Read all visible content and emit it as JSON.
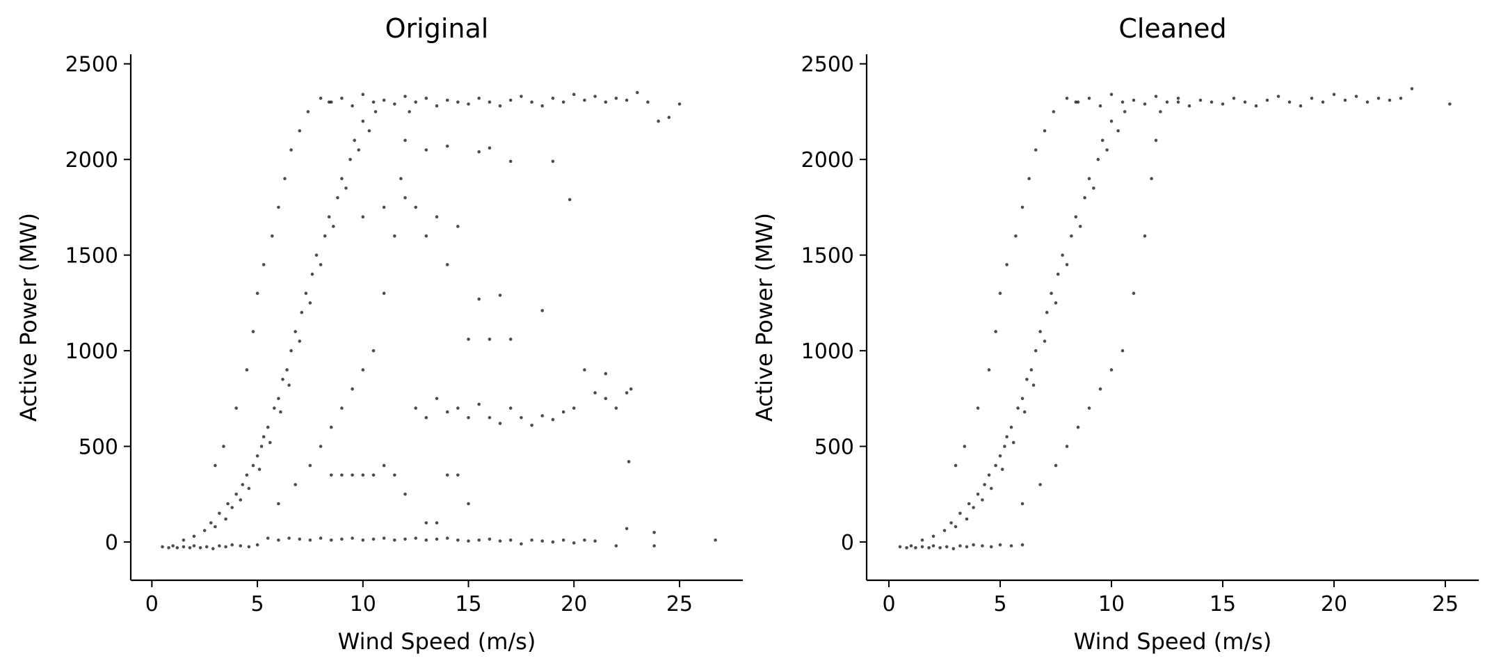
{
  "chart_data": [
    {
      "type": "scatter",
      "title": "Original",
      "xlabel": "Wind Speed (m/s)",
      "ylabel": "Active Power (MW)",
      "xlim": [
        -1,
        28
      ],
      "ylim": [
        -200,
        2550
      ],
      "xticks": [
        0,
        5,
        10,
        15,
        20,
        25
      ],
      "yticks": [
        0,
        500,
        1000,
        1500,
        2000,
        2500
      ],
      "grid": false,
      "marker_color": "#000000",
      "points": [
        [
          0.5,
          -25
        ],
        [
          0.8,
          -30
        ],
        [
          1.0,
          -20
        ],
        [
          1.2,
          -30
        ],
        [
          1.5,
          -25
        ],
        [
          1.8,
          -30
        ],
        [
          2.0,
          -20
        ],
        [
          2.3,
          -30
        ],
        [
          2.6,
          -25
        ],
        [
          2.9,
          -35
        ],
        [
          3.2,
          -20
        ],
        [
          3.5,
          -25
        ],
        [
          3.8,
          -15
        ],
        [
          4.2,
          -20
        ],
        [
          4.6,
          -25
        ],
        [
          5.0,
          -15
        ],
        [
          1.5,
          10
        ],
        [
          2.0,
          30
        ],
        [
          2.5,
          60
        ],
        [
          2.8,
          100
        ],
        [
          3.0,
          80
        ],
        [
          3.2,
          150
        ],
        [
          3.5,
          120
        ],
        [
          3.6,
          200
        ],
        [
          3.8,
          180
        ],
        [
          4.0,
          250
        ],
        [
          4.2,
          220
        ],
        [
          4.3,
          300
        ],
        [
          4.5,
          350
        ],
        [
          4.6,
          280
        ],
        [
          4.8,
          400
        ],
        [
          5.0,
          450
        ],
        [
          5.1,
          380
        ],
        [
          5.2,
          500
        ],
        [
          5.3,
          550
        ],
        [
          5.5,
          600
        ],
        [
          5.6,
          520
        ],
        [
          5.8,
          700
        ],
        [
          6.0,
          750
        ],
        [
          6.1,
          680
        ],
        [
          6.2,
          850
        ],
        [
          6.4,
          900
        ],
        [
          6.5,
          820
        ],
        [
          6.6,
          1000
        ],
        [
          6.8,
          1100
        ],
        [
          7.0,
          1050
        ],
        [
          7.1,
          1200
        ],
        [
          7.3,
          1300
        ],
        [
          7.5,
          1250
        ],
        [
          7.6,
          1400
        ],
        [
          7.8,
          1500
        ],
        [
          8.0,
          1450
        ],
        [
          8.2,
          1600
        ],
        [
          8.4,
          1700
        ],
        [
          8.6,
          1650
        ],
        [
          8.8,
          1800
        ],
        [
          9.0,
          1900
        ],
        [
          9.2,
          1850
        ],
        [
          9.4,
          2000
        ],
        [
          9.6,
          2100
        ],
        [
          9.8,
          2050
        ],
        [
          10.0,
          2200
        ],
        [
          10.3,
          2150
        ],
        [
          10.6,
          2250
        ],
        [
          3.0,
          400
        ],
        [
          3.4,
          500
        ],
        [
          4.0,
          700
        ],
        [
          4.5,
          900
        ],
        [
          4.8,
          1100
        ],
        [
          5.0,
          1300
        ],
        [
          5.3,
          1450
        ],
        [
          5.7,
          1600
        ],
        [
          6.0,
          1750
        ],
        [
          6.3,
          1900
        ],
        [
          6.6,
          2050
        ],
        [
          7.0,
          2150
        ],
        [
          7.4,
          2250
        ],
        [
          8.0,
          2320
        ],
        [
          8.4,
          2300
        ],
        [
          6.0,
          200
        ],
        [
          6.8,
          300
        ],
        [
          7.5,
          400
        ],
        [
          8.0,
          500
        ],
        [
          8.5,
          600
        ],
        [
          9.0,
          700
        ],
        [
          9.5,
          800
        ],
        [
          10.0,
          900
        ],
        [
          10.5,
          1000
        ],
        [
          11.0,
          1300
        ],
        [
          11.5,
          1600
        ],
        [
          11.8,
          1900
        ],
        [
          12.0,
          2100
        ],
        [
          12.2,
          2250
        ],
        [
          8.5,
          2300
        ],
        [
          9.0,
          2320
        ],
        [
          9.5,
          2280
        ],
        [
          10.0,
          2340
        ],
        [
          10.5,
          2300
        ],
        [
          11.0,
          2310
        ],
        [
          11.5,
          2290
        ],
        [
          12.0,
          2330
        ],
        [
          12.5,
          2300
        ],
        [
          13.0,
          2320
        ],
        [
          13.5,
          2280
        ],
        [
          14.0,
          2310
        ],
        [
          14.5,
          2300
        ],
        [
          15.0,
          2290
        ],
        [
          15.5,
          2320
        ],
        [
          16.0,
          2300
        ],
        [
          16.5,
          2280
        ],
        [
          17.0,
          2310
        ],
        [
          17.5,
          2330
        ],
        [
          18.0,
          2300
        ],
        [
          18.5,
          2280
        ],
        [
          19.0,
          2320
        ],
        [
          19.5,
          2300
        ],
        [
          20.0,
          2340
        ],
        [
          20.5,
          2310
        ],
        [
          21.0,
          2330
        ],
        [
          21.5,
          2300
        ],
        [
          22.0,
          2320
        ],
        [
          22.5,
          2310
        ],
        [
          23.0,
          2350
        ],
        [
          23.5,
          2300
        ],
        [
          24.0,
          2200
        ],
        [
          24.5,
          2220
        ],
        [
          25.0,
          2290
        ],
        [
          13.0,
          2050
        ],
        [
          14.0,
          2070
        ],
        [
          15.5,
          2040
        ],
        [
          16.0,
          2060
        ],
        [
          17.0,
          1990
        ],
        [
          19.0,
          1990
        ],
        [
          19.8,
          1790
        ],
        [
          10.0,
          1700
        ],
        [
          11.0,
          1750
        ],
        [
          12.0,
          1800
        ],
        [
          12.5,
          1750
        ],
        [
          13.0,
          1600
        ],
        [
          13.5,
          1700
        ],
        [
          14.0,
          1450
        ],
        [
          14.5,
          1650
        ],
        [
          15.5,
          1270
        ],
        [
          16.5,
          1290
        ],
        [
          18.5,
          1210
        ],
        [
          15.0,
          1060
        ],
        [
          16.0,
          1060
        ],
        [
          17.0,
          1060
        ],
        [
          12.5,
          700
        ],
        [
          13.0,
          650
        ],
        [
          13.5,
          750
        ],
        [
          14.0,
          680
        ],
        [
          14.5,
          700
        ],
        [
          15.0,
          650
        ],
        [
          15.5,
          720
        ],
        [
          16.0,
          650
        ],
        [
          16.5,
          620
        ],
        [
          17.0,
          700
        ],
        [
          17.5,
          650
        ],
        [
          18.0,
          610
        ],
        [
          18.5,
          660
        ],
        [
          19.0,
          640
        ],
        [
          19.5,
          680
        ],
        [
          20.0,
          700
        ],
        [
          20.5,
          900
        ],
        [
          21.0,
          780
        ],
        [
          21.5,
          750
        ],
        [
          22.0,
          700
        ],
        [
          22.5,
          780
        ],
        [
          22.7,
          800
        ],
        [
          21.5,
          880
        ],
        [
          22.6,
          420
        ],
        [
          8.5,
          350
        ],
        [
          9.0,
          350
        ],
        [
          9.5,
          350
        ],
        [
          10.0,
          350
        ],
        [
          10.5,
          350
        ],
        [
          11.0,
          400
        ],
        [
          11.5,
          350
        ],
        [
          12.0,
          250
        ],
        [
          13.0,
          100
        ],
        [
          13.5,
          100
        ],
        [
          14.0,
          350
        ],
        [
          14.5,
          350
        ],
        [
          15.0,
          200
        ],
        [
          5.5,
          20
        ],
        [
          6.0,
          10
        ],
        [
          6.5,
          20
        ],
        [
          7.0,
          15
        ],
        [
          7.5,
          10
        ],
        [
          8.0,
          20
        ],
        [
          8.5,
          10
        ],
        [
          9.0,
          15
        ],
        [
          9.5,
          20
        ],
        [
          10.0,
          10
        ],
        [
          10.5,
          15
        ],
        [
          11.0,
          20
        ],
        [
          11.5,
          10
        ],
        [
          12.0,
          15
        ],
        [
          12.5,
          20
        ],
        [
          13.0,
          10
        ],
        [
          13.5,
          15
        ],
        [
          14.0,
          20
        ],
        [
          14.5,
          10
        ],
        [
          15.0,
          5
        ],
        [
          15.5,
          10
        ],
        [
          16.0,
          15
        ],
        [
          16.5,
          5
        ],
        [
          17.0,
          10
        ],
        [
          17.5,
          -10
        ],
        [
          18.0,
          10
        ],
        [
          18.5,
          5
        ],
        [
          19.0,
          0
        ],
        [
          19.5,
          10
        ],
        [
          20.0,
          -5
        ],
        [
          20.5,
          10
        ],
        [
          21.0,
          5
        ],
        [
          22.0,
          -20
        ],
        [
          22.5,
          70
        ],
        [
          23.8,
          50
        ],
        [
          23.8,
          -20
        ],
        [
          26.7,
          10
        ]
      ]
    },
    {
      "type": "scatter",
      "title": "Cleaned",
      "xlabel": "Wind Speed (m/s)",
      "ylabel": "Active Power (MW)",
      "xlim": [
        -1,
        26.5
      ],
      "ylim": [
        -200,
        2550
      ],
      "xticks": [
        0,
        5,
        10,
        15,
        20,
        25
      ],
      "yticks": [
        0,
        500,
        1000,
        1500,
        2000,
        2500
      ],
      "grid": false,
      "marker_color": "#000000",
      "points": [
        [
          0.5,
          -25
        ],
        [
          0.8,
          -30
        ],
        [
          1.0,
          -20
        ],
        [
          1.2,
          -30
        ],
        [
          1.5,
          -25
        ],
        [
          1.8,
          -30
        ],
        [
          2.0,
          -20
        ],
        [
          2.3,
          -30
        ],
        [
          2.6,
          -25
        ],
        [
          2.9,
          -35
        ],
        [
          3.2,
          -20
        ],
        [
          3.5,
          -25
        ],
        [
          3.8,
          -15
        ],
        [
          4.2,
          -20
        ],
        [
          4.6,
          -25
        ],
        [
          5.0,
          -15
        ],
        [
          5.5,
          -20
        ],
        [
          6.0,
          -15
        ],
        [
          1.5,
          10
        ],
        [
          2.0,
          30
        ],
        [
          2.5,
          60
        ],
        [
          2.8,
          100
        ],
        [
          3.0,
          80
        ],
        [
          3.2,
          150
        ],
        [
          3.5,
          120
        ],
        [
          3.6,
          200
        ],
        [
          3.8,
          180
        ],
        [
          4.0,
          250
        ],
        [
          4.2,
          220
        ],
        [
          4.3,
          300
        ],
        [
          4.5,
          350
        ],
        [
          4.6,
          280
        ],
        [
          4.8,
          400
        ],
        [
          5.0,
          450
        ],
        [
          5.1,
          380
        ],
        [
          5.2,
          500
        ],
        [
          5.3,
          550
        ],
        [
          5.5,
          600
        ],
        [
          5.6,
          520
        ],
        [
          5.8,
          700
        ],
        [
          6.0,
          750
        ],
        [
          6.1,
          680
        ],
        [
          6.2,
          850
        ],
        [
          6.4,
          900
        ],
        [
          6.5,
          820
        ],
        [
          6.6,
          1000
        ],
        [
          6.8,
          1100
        ],
        [
          7.0,
          1050
        ],
        [
          7.1,
          1200
        ],
        [
          7.3,
          1300
        ],
        [
          7.5,
          1250
        ],
        [
          7.6,
          1400
        ],
        [
          7.8,
          1500
        ],
        [
          8.0,
          1450
        ],
        [
          8.2,
          1600
        ],
        [
          8.4,
          1700
        ],
        [
          8.6,
          1650
        ],
        [
          8.8,
          1800
        ],
        [
          9.0,
          1900
        ],
        [
          9.2,
          1850
        ],
        [
          9.4,
          2000
        ],
        [
          9.6,
          2100
        ],
        [
          9.8,
          2050
        ],
        [
          10.0,
          2200
        ],
        [
          10.3,
          2150
        ],
        [
          10.6,
          2250
        ],
        [
          3.0,
          400
        ],
        [
          3.4,
          500
        ],
        [
          4.0,
          700
        ],
        [
          4.5,
          900
        ],
        [
          4.8,
          1100
        ],
        [
          5.0,
          1300
        ],
        [
          5.3,
          1450
        ],
        [
          5.7,
          1600
        ],
        [
          6.0,
          1750
        ],
        [
          6.3,
          1900
        ],
        [
          6.6,
          2050
        ],
        [
          7.0,
          2150
        ],
        [
          7.4,
          2250
        ],
        [
          8.0,
          2320
        ],
        [
          8.4,
          2300
        ],
        [
          6.0,
          200
        ],
        [
          6.8,
          300
        ],
        [
          7.5,
          400
        ],
        [
          8.0,
          500
        ],
        [
          8.5,
          600
        ],
        [
          9.0,
          700
        ],
        [
          9.5,
          800
        ],
        [
          10.0,
          900
        ],
        [
          10.5,
          1000
        ],
        [
          11.0,
          1300
        ],
        [
          11.5,
          1600
        ],
        [
          11.8,
          1900
        ],
        [
          12.0,
          2100
        ],
        [
          12.2,
          2250
        ],
        [
          13.0,
          2300
        ],
        [
          8.5,
          2300
        ],
        [
          9.0,
          2320
        ],
        [
          9.5,
          2280
        ],
        [
          10.0,
          2340
        ],
        [
          10.5,
          2300
        ],
        [
          11.0,
          2310
        ],
        [
          11.5,
          2290
        ],
        [
          12.0,
          2330
        ],
        [
          12.5,
          2300
        ],
        [
          13.0,
          2320
        ],
        [
          13.5,
          2280
        ],
        [
          14.0,
          2310
        ],
        [
          14.5,
          2300
        ],
        [
          15.0,
          2290
        ],
        [
          15.5,
          2320
        ],
        [
          16.0,
          2300
        ],
        [
          16.5,
          2280
        ],
        [
          17.0,
          2310
        ],
        [
          17.5,
          2330
        ],
        [
          18.0,
          2300
        ],
        [
          18.5,
          2280
        ],
        [
          19.0,
          2320
        ],
        [
          19.5,
          2300
        ],
        [
          20.0,
          2340
        ],
        [
          20.5,
          2310
        ],
        [
          21.0,
          2330
        ],
        [
          21.5,
          2300
        ],
        [
          22.0,
          2320
        ],
        [
          22.5,
          2310
        ],
        [
          23.0,
          2320
        ],
        [
          23.5,
          2370
        ],
        [
          25.2,
          2290
        ]
      ]
    }
  ]
}
